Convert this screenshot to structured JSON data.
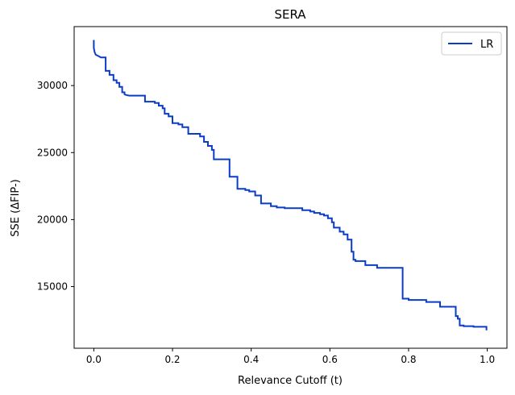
{
  "chart_data": {
    "type": "line",
    "title": "SERA",
    "xlabel": "Relevance Cutoff (t)",
    "ylabel": "SSE (ΔFIP-)",
    "xlim": [
      -0.05,
      1.05
    ],
    "ylim": [
      10400,
      34400
    ],
    "xticks": [
      0.0,
      0.2,
      0.4,
      0.6,
      0.8,
      1.0
    ],
    "xtick_labels": [
      "0.0",
      "0.2",
      "0.4",
      "0.6",
      "0.8",
      "1.0"
    ],
    "yticks": [
      15000,
      20000,
      25000,
      30000
    ],
    "ytick_labels": [
      "15000",
      "20000",
      "25000",
      "30000"
    ],
    "legend_position": "top-right",
    "grid": false,
    "series": [
      {
        "name": "LR",
        "color": "#0a3cc8",
        "x": [
          0.0,
          0.0,
          0.002,
          0.005,
          0.012,
          0.018,
          0.03,
          0.03,
          0.04,
          0.04,
          0.05,
          0.05,
          0.058,
          0.058,
          0.065,
          0.065,
          0.072,
          0.072,
          0.078,
          0.078,
          0.082,
          0.09,
          0.13,
          0.13,
          0.155,
          0.155,
          0.165,
          0.165,
          0.175,
          0.175,
          0.18,
          0.18,
          0.19,
          0.19,
          0.2,
          0.2,
          0.215,
          0.215,
          0.225,
          0.225,
          0.24,
          0.24,
          0.27,
          0.27,
          0.28,
          0.28,
          0.29,
          0.29,
          0.3,
          0.3,
          0.305,
          0.305,
          0.345,
          0.345,
          0.365,
          0.365,
          0.385,
          0.385,
          0.395,
          0.395,
          0.41,
          0.41,
          0.425,
          0.425,
          0.45,
          0.45,
          0.465,
          0.465,
          0.485,
          0.485,
          0.53,
          0.53,
          0.55,
          0.55,
          0.56,
          0.56,
          0.575,
          0.575,
          0.585,
          0.585,
          0.595,
          0.595,
          0.605,
          0.605,
          0.61,
          0.61,
          0.625,
          0.625,
          0.635,
          0.635,
          0.645,
          0.645,
          0.655,
          0.655,
          0.66,
          0.66,
          0.665,
          0.665,
          0.69,
          0.69,
          0.72,
          0.72,
          0.785,
          0.785,
          0.8,
          0.8,
          0.845,
          0.845,
          0.88,
          0.88,
          0.92,
          0.92,
          0.925,
          0.925,
          0.93,
          0.93,
          0.94,
          0.94,
          0.965,
          0.965,
          0.998,
          0.998,
          1.0
        ],
        "values": [
          33400,
          32800,
          32500,
          32300,
          32200,
          32100,
          32100,
          31100,
          31100,
          30800,
          30800,
          30400,
          30400,
          30200,
          30200,
          29900,
          29900,
          29500,
          29500,
          29350,
          29300,
          29250,
          29250,
          28800,
          28800,
          28700,
          28700,
          28500,
          28500,
          28300,
          28300,
          27900,
          27900,
          27700,
          27700,
          27200,
          27200,
          27100,
          27100,
          26900,
          26900,
          26400,
          26400,
          26200,
          26200,
          25800,
          25800,
          25500,
          25500,
          25200,
          25200,
          24500,
          24500,
          23200,
          23200,
          22300,
          22300,
          22200,
          22200,
          22100,
          22100,
          21800,
          21800,
          21200,
          21200,
          21000,
          21000,
          20900,
          20900,
          20850,
          20850,
          20700,
          20700,
          20600,
          20600,
          20500,
          20500,
          20400,
          20400,
          20300,
          20300,
          20100,
          20100,
          19800,
          19800,
          19400,
          19400,
          19100,
          19100,
          18900,
          18900,
          18500,
          18500,
          17600,
          17600,
          17000,
          17000,
          16900,
          16900,
          16600,
          16600,
          16400,
          16400,
          14100,
          14100,
          14000,
          14000,
          13850,
          13850,
          13500,
          13500,
          12800,
          12800,
          12600,
          12600,
          12100,
          12100,
          12050,
          12050,
          12000,
          12000,
          11800,
          11800
        ]
      }
    ]
  }
}
